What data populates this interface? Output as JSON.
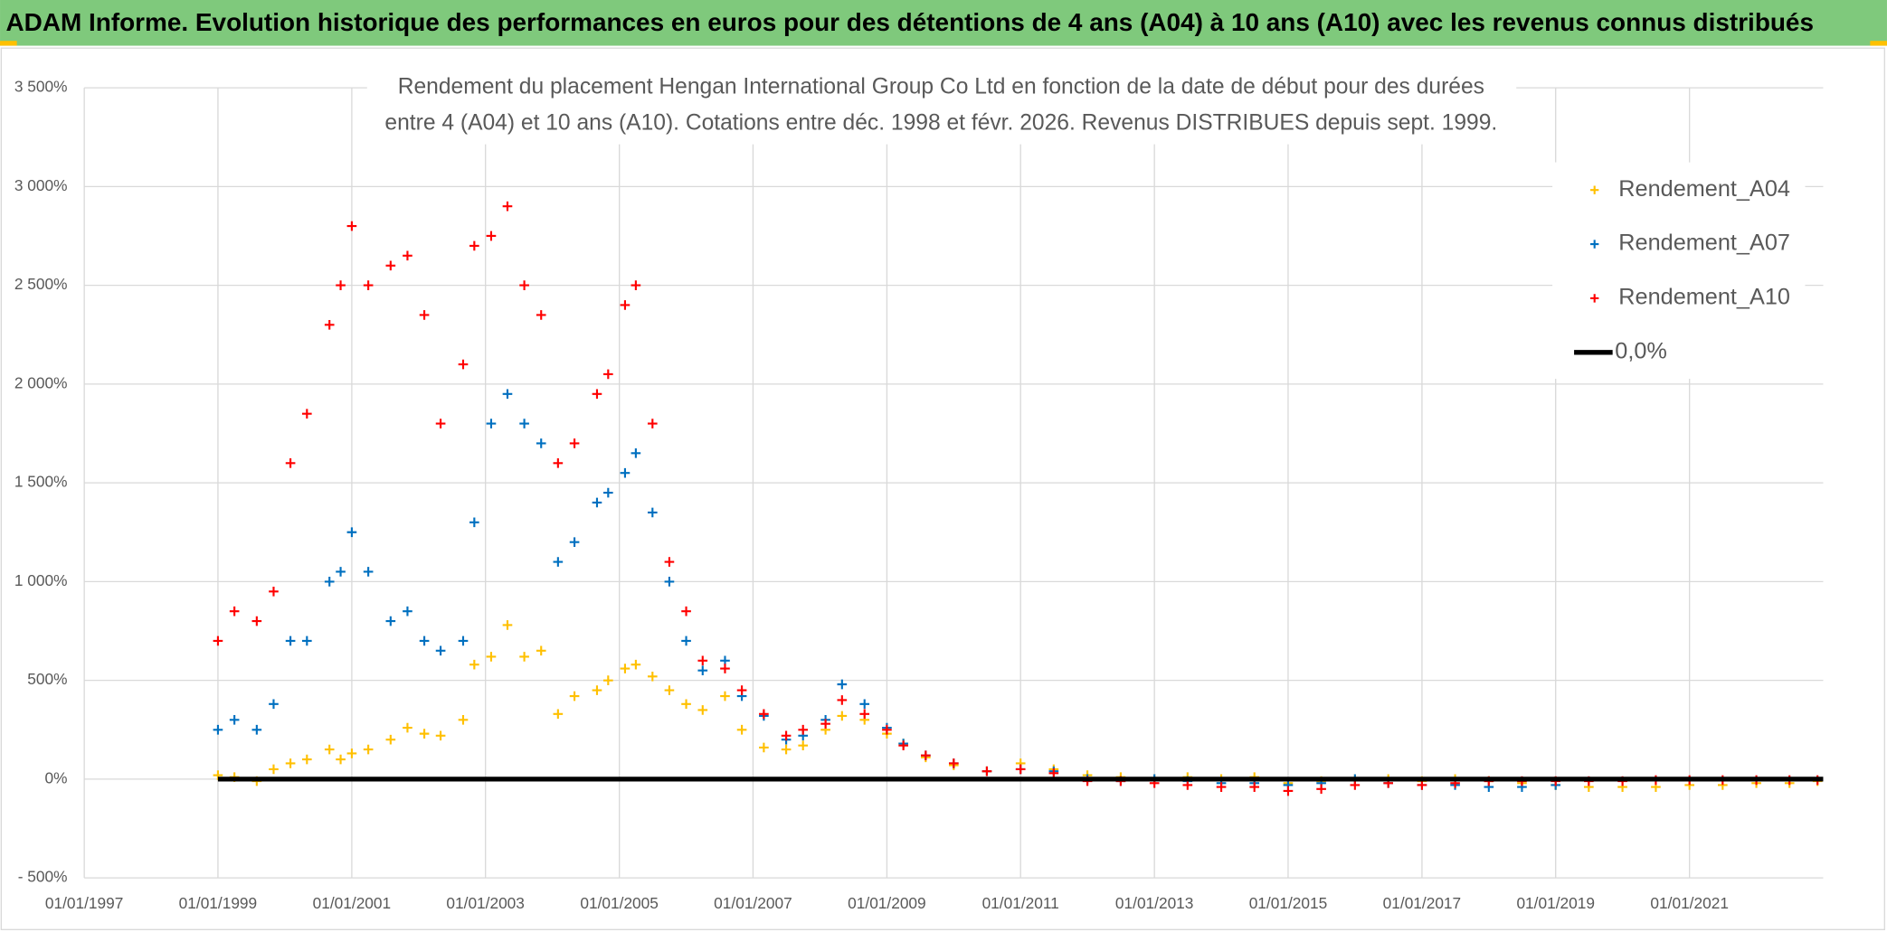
{
  "chart_data": {
    "type": "scatter",
    "title": "ADAM Informe. Evolution historique des performances en euros pour des détentions de 4 ans (A04) à 10 ans (A10) avec les revenus connus distribués",
    "subtitle": [
      "Rendement du placement Hengan International Group Co Ltd en fonction de la date de début pour des durées",
      "entre 4 (A04) et 10 ans (A10). Cotations entre déc. 1998 et févr. 2026. Revenus DISTRIBUES depuis sept. 1999."
    ],
    "xlim": [
      "1997-01-01",
      "2023-01-01"
    ],
    "xticks": [
      {
        "value": "1997-01-01",
        "label": "01/01/1997"
      },
      {
        "value": "1999-01-01",
        "label": "01/01/1999"
      },
      {
        "value": "2001-01-01",
        "label": "01/01/2001"
      },
      {
        "value": "2003-01-01",
        "label": "01/01/2003"
      },
      {
        "value": "2005-01-01",
        "label": "01/01/2005"
      },
      {
        "value": "2007-01-01",
        "label": "01/01/2007"
      },
      {
        "value": "2009-01-01",
        "label": "01/01/2009"
      },
      {
        "value": "2011-01-01",
        "label": "01/01/2011"
      },
      {
        "value": "2013-01-01",
        "label": "01/01/2013"
      },
      {
        "value": "2015-01-01",
        "label": "01/01/2015"
      },
      {
        "value": "2017-01-01",
        "label": "01/01/2017"
      },
      {
        "value": "2019-01-01",
        "label": "01/01/2019"
      },
      {
        "value": "2021-01-01",
        "label": "01/01/2021"
      }
    ],
    "ylim": [
      -500,
      3500
    ],
    "yticks": [
      {
        "value": -500,
        "label": "- 500%"
      },
      {
        "value": 0,
        "label": "0%"
      },
      {
        "value": 500,
        "label": "500%"
      },
      {
        "value": 1000,
        "label": "1 000%"
      },
      {
        "value": 1500,
        "label": "1 500%"
      },
      {
        "value": 2000,
        "label": "2 000%"
      },
      {
        "value": 2500,
        "label": "2 500%"
      },
      {
        "value": 3000,
        "label": "3 000%"
      },
      {
        "value": 3500,
        "label": "3 500%"
      }
    ],
    "grid": true,
    "legend": "upper right",
    "series": [
      {
        "name": "Rendement_A04",
        "color": "#ffc000",
        "marker": "plus",
        "x": [
          "1999-01-01",
          "1999-04-01",
          "1999-08-01",
          "1999-11-01",
          "2000-02-01",
          "2000-05-01",
          "2000-09-01",
          "2000-11-01",
          "2001-01-01",
          "2001-04-01",
          "2001-08-01",
          "2001-11-01",
          "2002-02-01",
          "2002-05-01",
          "2002-09-01",
          "2002-11-01",
          "2003-02-01",
          "2003-05-01",
          "2003-08-01",
          "2003-11-01",
          "2004-02-01",
          "2004-05-01",
          "2004-09-01",
          "2004-11-01",
          "2005-02-01",
          "2005-04-01",
          "2005-07-01",
          "2005-10-01",
          "2006-01-01",
          "2006-04-01",
          "2006-08-01",
          "2006-11-01",
          "2007-03-01",
          "2007-07-01",
          "2007-10-01",
          "2008-02-01",
          "2008-05-01",
          "2008-09-01",
          "2009-01-01",
          "2009-04-01",
          "2009-08-01",
          "2010-01-01",
          "2010-07-01",
          "2011-01-01",
          "2011-07-01",
          "2012-01-01",
          "2012-07-01",
          "2013-01-01",
          "2013-07-01",
          "2014-01-01",
          "2014-07-01",
          "2015-01-01",
          "2015-07-01",
          "2016-01-01",
          "2016-07-01",
          "2017-01-01",
          "2017-07-01",
          "2018-01-01",
          "2018-07-01",
          "2019-01-01",
          "2019-07-01",
          "2020-01-01",
          "2020-07-01",
          "2021-01-01",
          "2021-07-01",
          "2022-01-01",
          "2022-07-01",
          "2022-12-01"
        ],
        "values": [
          20,
          10,
          -10,
          50,
          80,
          100,
          150,
          100,
          130,
          150,
          200,
          260,
          230,
          220,
          300,
          580,
          620,
          780,
          620,
          650,
          330,
          420,
          450,
          500,
          560,
          580,
          520,
          450,
          380,
          350,
          420,
          250,
          160,
          150,
          170,
          250,
          320,
          300,
          230,
          180,
          110,
          70,
          40,
          80,
          50,
          20,
          10,
          0,
          10,
          0,
          10,
          -20,
          -10,
          0,
          0,
          -10,
          0,
          -10,
          -20,
          -30,
          -40,
          -40,
          -40,
          -30,
          -30,
          -20,
          -20,
          -10
        ]
      },
      {
        "name": "Rendement_A07",
        "color": "#0070c0",
        "marker": "plus",
        "x": [
          "1999-01-01",
          "1999-04-01",
          "1999-08-01",
          "1999-11-01",
          "2000-02-01",
          "2000-05-01",
          "2000-09-01",
          "2000-11-01",
          "2001-01-01",
          "2001-04-01",
          "2001-08-01",
          "2001-11-01",
          "2002-02-01",
          "2002-05-01",
          "2002-09-01",
          "2002-11-01",
          "2003-02-01",
          "2003-05-01",
          "2003-08-01",
          "2003-11-01",
          "2004-02-01",
          "2004-05-01",
          "2004-09-01",
          "2004-11-01",
          "2005-02-01",
          "2005-04-01",
          "2005-07-01",
          "2005-10-01",
          "2006-01-01",
          "2006-04-01",
          "2006-08-01",
          "2006-11-01",
          "2007-03-01",
          "2007-07-01",
          "2007-10-01",
          "2008-02-01",
          "2008-05-01",
          "2008-09-01",
          "2009-01-01",
          "2009-04-01",
          "2009-08-01",
          "2010-01-01",
          "2010-07-01",
          "2011-01-01",
          "2011-07-01",
          "2012-01-01",
          "2012-07-01",
          "2013-01-01",
          "2013-07-01",
          "2014-01-01",
          "2014-07-01",
          "2015-01-01",
          "2015-07-01",
          "2016-01-01",
          "2016-07-01",
          "2017-01-01",
          "2017-07-01",
          "2018-01-01",
          "2018-07-01",
          "2019-01-01"
        ],
        "values": [
          250,
          300,
          250,
          380,
          700,
          700,
          1000,
          1050,
          1250,
          1050,
          800,
          850,
          700,
          650,
          700,
          1300,
          1800,
          1950,
          1800,
          1700,
          1100,
          1200,
          1400,
          1450,
          1550,
          1650,
          1350,
          1000,
          700,
          550,
          600,
          420,
          320,
          200,
          220,
          300,
          480,
          380,
          260,
          180,
          120,
          80,
          40,
          50,
          40,
          0,
          -10,
          0,
          -10,
          -20,
          -20,
          -30,
          -20,
          0,
          -20,
          -30,
          -30,
          -40,
          -40,
          -30
        ]
      },
      {
        "name": "Rendement_A10",
        "color": "#ff0000",
        "marker": "plus",
        "x": [
          "1999-01-01",
          "1999-04-01",
          "1999-08-01",
          "1999-11-01",
          "2000-02-01",
          "2000-05-01",
          "2000-09-01",
          "2000-11-01",
          "2001-01-01",
          "2001-04-01",
          "2001-08-01",
          "2001-11-01",
          "2002-02-01",
          "2002-05-01",
          "2002-09-01",
          "2002-11-01",
          "2003-02-01",
          "2003-05-01",
          "2003-08-01",
          "2003-11-01",
          "2004-02-01",
          "2004-05-01",
          "2004-09-01",
          "2004-11-01",
          "2005-02-01",
          "2005-04-01",
          "2005-07-01",
          "2005-10-01",
          "2006-01-01",
          "2006-04-01",
          "2006-08-01",
          "2006-11-01",
          "2007-03-01",
          "2007-07-01",
          "2007-10-01",
          "2008-02-01",
          "2008-05-01",
          "2008-09-01",
          "2009-01-01",
          "2009-04-01",
          "2009-08-01",
          "2010-01-01",
          "2010-07-01",
          "2011-01-01",
          "2011-07-01",
          "2012-01-01",
          "2012-07-01",
          "2013-01-01",
          "2013-07-01",
          "2014-01-01",
          "2014-07-01",
          "2015-01-01",
          "2015-07-01",
          "2016-01-01",
          "2016-07-01",
          "2017-01-01",
          "2017-07-01",
          "2018-01-01",
          "2018-07-01",
          "2019-01-01",
          "2019-07-01",
          "2020-01-01",
          "2020-07-01",
          "2021-01-01",
          "2021-07-01",
          "2022-01-01",
          "2022-07-01",
          "2022-12-01"
        ],
        "values": [
          700,
          850,
          800,
          950,
          1600,
          1850,
          2300,
          2500,
          2800,
          2500,
          2600,
          2650,
          2350,
          1800,
          2100,
          2700,
          2750,
          2900,
          2500,
          2350,
          1600,
          1700,
          1950,
          2050,
          2400,
          2500,
          1800,
          1100,
          850,
          600,
          560,
          450,
          330,
          220,
          250,
          280,
          400,
          330,
          250,
          170,
          120,
          80,
          40,
          50,
          30,
          -10,
          -10,
          -20,
          -30,
          -40,
          -40,
          -60,
          -50,
          -30,
          -20,
          -30,
          -20,
          -10,
          -10,
          -10,
          -10,
          -10,
          -5,
          -5,
          -5,
          -5,
          -5,
          -5
        ]
      },
      {
        "name": "0,0%",
        "color": "#000000",
        "marker": "line",
        "x": [
          "1999-01-01",
          "2023-01-01"
        ],
        "values": [
          0,
          0
        ]
      }
    ]
  }
}
